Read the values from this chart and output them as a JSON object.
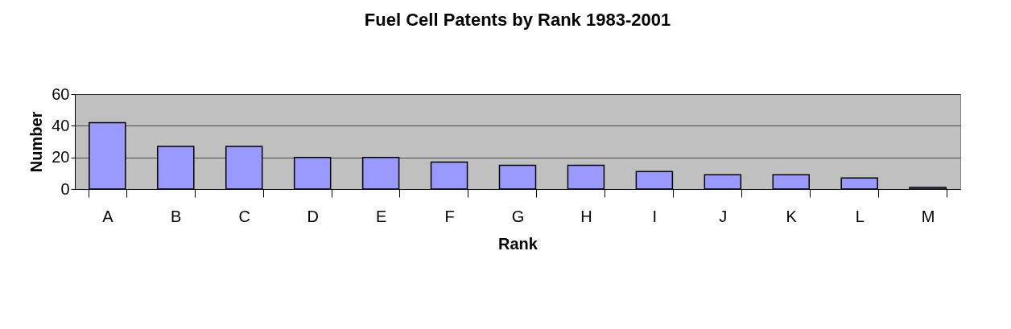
{
  "chart_data": {
    "type": "bar",
    "title": "Fuel Cell Patents by Rank 1983-2001",
    "xlabel": "Rank",
    "ylabel": "Number",
    "categories": [
      "A",
      "B",
      "C",
      "D",
      "E",
      "F",
      "G",
      "H",
      "I",
      "J",
      "K",
      "L",
      "M"
    ],
    "values": [
      42,
      27,
      27,
      20,
      20,
      17,
      15,
      15,
      11,
      9,
      9,
      7,
      1
    ],
    "color": "#9999ff",
    "ylim": [
      0,
      60
    ],
    "yticks": [
      0,
      20,
      40,
      60
    ],
    "grid": "y"
  }
}
